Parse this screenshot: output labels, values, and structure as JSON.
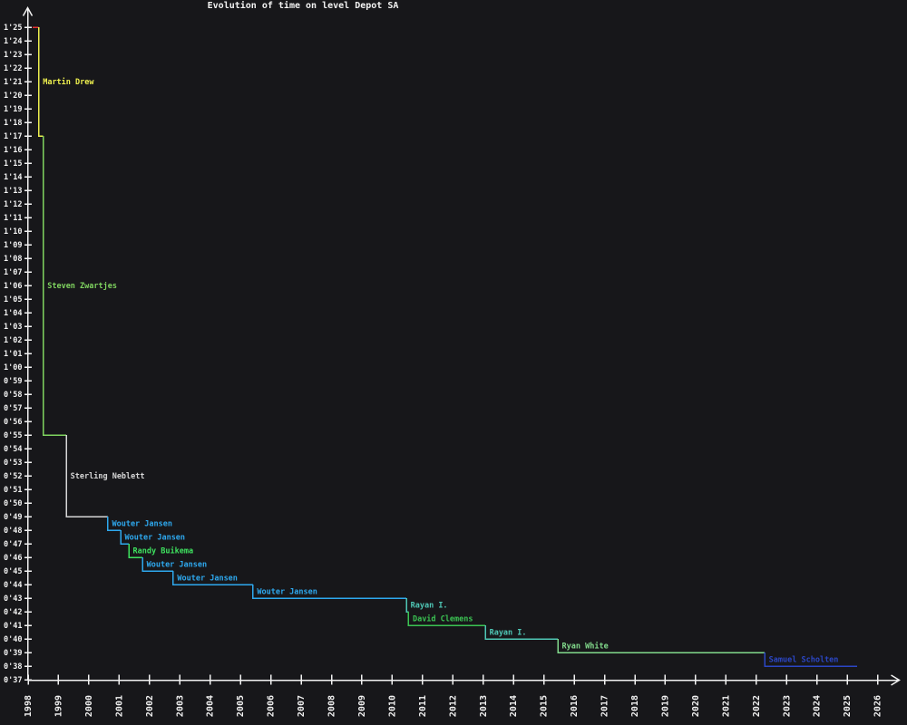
{
  "chart_data": {
    "type": "line",
    "style": "step-record-progression",
    "title": "Evolution of time on level Depot SA",
    "xlabel": "",
    "ylabel": "",
    "grid": false,
    "legend": "none",
    "background_color": "#17171a",
    "axis_color": "#f2f2f2",
    "x_axis": {
      "ticks": [
        1998,
        1999,
        2000,
        2001,
        2002,
        2003,
        2004,
        2005,
        2006,
        2007,
        2008,
        2009,
        2010,
        2011,
        2012,
        2013,
        2014,
        2015,
        2016,
        2017,
        2018,
        2019,
        2020,
        2021,
        2022,
        2023,
        2024,
        2025,
        2026
      ],
      "range": [
        1998,
        2026.8
      ]
    },
    "y_axis": {
      "unit": "minutes'seconds",
      "range_seconds": [
        37,
        85
      ],
      "ticks": [
        {
          "s": 37,
          "label": "0'37"
        },
        {
          "s": 38,
          "label": "0'38"
        },
        {
          "s": 39,
          "label": "0'39"
        },
        {
          "s": 40,
          "label": "0'40"
        },
        {
          "s": 41,
          "label": "0'41"
        },
        {
          "s": 42,
          "label": "0'42"
        },
        {
          "s": 43,
          "label": "0'43"
        },
        {
          "s": 44,
          "label": "0'44"
        },
        {
          "s": 45,
          "label": "0'45"
        },
        {
          "s": 46,
          "label": "0'46"
        },
        {
          "s": 47,
          "label": "0'47"
        },
        {
          "s": 48,
          "label": "0'48"
        },
        {
          "s": 49,
          "label": "0'49"
        },
        {
          "s": 50,
          "label": "0'50"
        },
        {
          "s": 51,
          "label": "0'51"
        },
        {
          "s": 52,
          "label": "0'52"
        },
        {
          "s": 53,
          "label": "0'53"
        },
        {
          "s": 54,
          "label": "0'54"
        },
        {
          "s": 55,
          "label": "0'55"
        },
        {
          "s": 56,
          "label": "0'56"
        },
        {
          "s": 57,
          "label": "0'57"
        },
        {
          "s": 58,
          "label": "0'58"
        },
        {
          "s": 59,
          "label": "0'59"
        },
        {
          "s": 60,
          "label": "1'00"
        },
        {
          "s": 61,
          "label": "1'01"
        },
        {
          "s": 62,
          "label": "1'02"
        },
        {
          "s": 63,
          "label": "1'03"
        },
        {
          "s": 64,
          "label": "1'04"
        },
        {
          "s": 65,
          "label": "1'05"
        },
        {
          "s": 66,
          "label": "1'06"
        },
        {
          "s": 67,
          "label": "1'07"
        },
        {
          "s": 68,
          "label": "1'08"
        },
        {
          "s": 69,
          "label": "1'09"
        },
        {
          "s": 70,
          "label": "1'10"
        },
        {
          "s": 71,
          "label": "1'11"
        },
        {
          "s": 72,
          "label": "1'12"
        },
        {
          "s": 73,
          "label": "1'13"
        },
        {
          "s": 74,
          "label": "1'14"
        },
        {
          "s": 75,
          "label": "1'15"
        },
        {
          "s": 76,
          "label": "1'16"
        },
        {
          "s": 77,
          "label": "1'17"
        },
        {
          "s": 78,
          "label": "1'18"
        },
        {
          "s": 79,
          "label": "1'19"
        },
        {
          "s": 80,
          "label": "1'20"
        },
        {
          "s": 81,
          "label": "1'21"
        },
        {
          "s": 82,
          "label": "1'22"
        },
        {
          "s": 83,
          "label": "1'23"
        },
        {
          "s": 84,
          "label": "1'24"
        },
        {
          "s": 85,
          "label": "1'25"
        }
      ]
    },
    "initial_record": {
      "holder": "",
      "time": "1'25",
      "seconds": 85,
      "year_start": 1998.15,
      "year_end": 1998.35,
      "color": "#e33030"
    },
    "records": [
      {
        "holder": "Martin Drew",
        "time": "1'17",
        "seconds": 77,
        "year": 1998.35,
        "color": "#eef04e"
      },
      {
        "holder": "Steven Zwartjes",
        "time": "0'55",
        "seconds": 55,
        "year": 1998.5,
        "color": "#7fd35f"
      },
      {
        "holder": "Sterling Neblett",
        "time": "0'49",
        "seconds": 49,
        "year": 1999.26,
        "color": "#d6d6d6"
      },
      {
        "holder": "Wouter Jansen",
        "time": "0'48",
        "seconds": 48,
        "year": 2000.63,
        "color": "#2ea8ee"
      },
      {
        "holder": "Wouter Jansen",
        "time": "0'47",
        "seconds": 47,
        "year": 2001.05,
        "color": "#2ea8ee"
      },
      {
        "holder": "Randy Buikema",
        "time": "0'46",
        "seconds": 46,
        "year": 2001.32,
        "color": "#3ee25f"
      },
      {
        "holder": "Wouter Jansen",
        "time": "0'45",
        "seconds": 45,
        "year": 2001.77,
        "color": "#2ea8ee"
      },
      {
        "holder": "Wouter Jansen",
        "time": "0'44",
        "seconds": 44,
        "year": 2002.78,
        "color": "#2ea8ee"
      },
      {
        "holder": "Wouter Jansen",
        "time": "0'43",
        "seconds": 43,
        "year": 2005.41,
        "color": "#2ea8ee"
      },
      {
        "holder": "Rayan I.",
        "time": "0'42",
        "seconds": 42,
        "year": 2010.47,
        "color": "#4fc7b6"
      },
      {
        "holder": "David Clemens",
        "time": "0'41",
        "seconds": 41,
        "year": 2010.54,
        "color": "#3bc353"
      },
      {
        "holder": "Rayan I.",
        "time": "0'40",
        "seconds": 40,
        "year": 2013.07,
        "color": "#4fc7b6"
      },
      {
        "holder": "Ryan White",
        "time": "0'39",
        "seconds": 39,
        "year": 2015.46,
        "color": "#82da8c"
      },
      {
        "holder": "Samuel Scholten",
        "time": "0'38",
        "seconds": 38,
        "year": 2022.28,
        "color": "#2b46c4"
      }
    ],
    "series_end_year": 2025.33
  }
}
